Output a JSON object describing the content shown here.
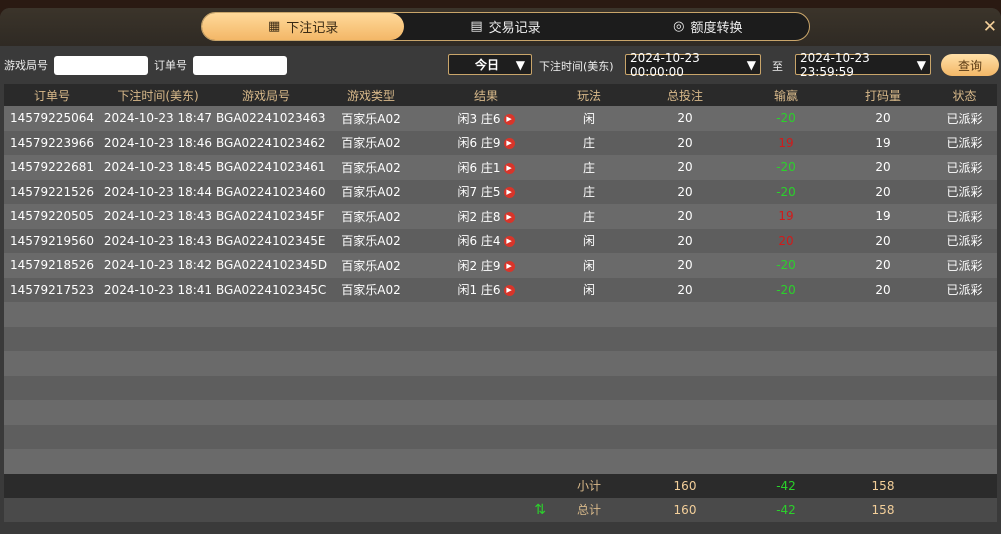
{
  "tabs": [
    {
      "label": "下注记录",
      "icon": "calendar-icon",
      "active": true
    },
    {
      "label": "交易记录",
      "icon": "clipboard-icon"
    },
    {
      "label": "额度转换",
      "icon": "coins-icon"
    }
  ],
  "filters": {
    "round_label": "游戏局号",
    "round_value": "",
    "order_label": "订单号",
    "order_value": "",
    "range": "今日",
    "time_label": "下注时间(美东)",
    "start": "2024-10-23 00:00:00",
    "to": "至",
    "end": "2024-10-23 23:59:59",
    "query": "查询"
  },
  "columns": [
    "订单号",
    "下注时间(美东)",
    "游戏局号",
    "游戏类型",
    "结果",
    "玩法",
    "总投注",
    "输赢",
    "打码量",
    "状态"
  ],
  "rows": [
    [
      "14579225064",
      "2024-10-23 18:47",
      "BGA02241023463",
      "百家乐A02",
      "闲3 庄6",
      "闲",
      "20",
      "-20",
      "20",
      "已派彩"
    ],
    [
      "14579223966",
      "2024-10-23 18:46",
      "BGA02241023462",
      "百家乐A02",
      "闲6 庄9",
      "庄",
      "20",
      "19",
      "19",
      "已派彩"
    ],
    [
      "14579222681",
      "2024-10-23 18:45",
      "BGA02241023461",
      "百家乐A02",
      "闲6 庄1",
      "庄",
      "20",
      "-20",
      "20",
      "已派彩"
    ],
    [
      "14579221526",
      "2024-10-23 18:44",
      "BGA02241023460",
      "百家乐A02",
      "闲7 庄5",
      "庄",
      "20",
      "-20",
      "20",
      "已派彩"
    ],
    [
      "14579220505",
      "2024-10-23 18:43",
      "BGA0224102345F",
      "百家乐A02",
      "闲2 庄8",
      "庄",
      "20",
      "19",
      "19",
      "已派彩"
    ],
    [
      "14579219560",
      "2024-10-23 18:43",
      "BGA0224102345E",
      "百家乐A02",
      "闲6 庄4",
      "闲",
      "20",
      "20",
      "20",
      "已派彩"
    ],
    [
      "14579218526",
      "2024-10-23 18:42",
      "BGA0224102345D",
      "百家乐A02",
      "闲2 庄9",
      "闲",
      "20",
      "-20",
      "20",
      "已派彩"
    ],
    [
      "14579217523",
      "2024-10-23 18:41",
      "BGA0224102345C",
      "百家乐A02",
      "闲1 庄6",
      "闲",
      "20",
      "-20",
      "20",
      "已派彩"
    ]
  ],
  "subtotal": {
    "label": "小计",
    "bet": "160",
    "win": "-42",
    "turnover": "158"
  },
  "total": {
    "label": "总计",
    "bet": "160",
    "win": "-42",
    "turnover": "158"
  },
  "colors": {
    "win": "#2bd12b",
    "loss": "#d21a1a",
    "accent": "#f3b767"
  }
}
